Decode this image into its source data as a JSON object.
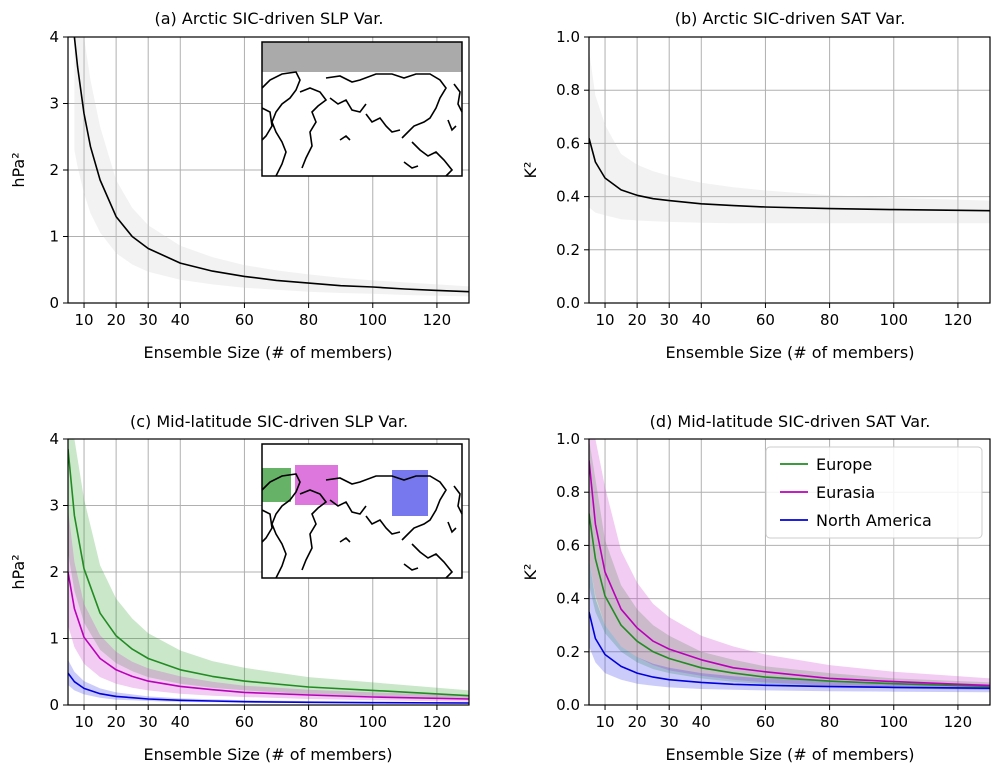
{
  "chart_data": [
    {
      "type": "line",
      "title": "(a) Arctic SIC-driven SLP Var.",
      "xlabel": "Ensemble Size (# of members)",
      "ylabel": "hPa²",
      "xlim": [
        5,
        130
      ],
      "ylim": [
        0,
        4
      ],
      "xticks": [
        10,
        20,
        30,
        40,
        60,
        80,
        100,
        120
      ],
      "yticks": [
        0,
        1,
        2,
        3,
        4
      ],
      "ytick_labels": [
        "0",
        "1",
        "2",
        "3",
        "4"
      ],
      "grid": true,
      "inset_map": {
        "regions": [
          {
            "name": "arctic",
            "color": "#999999"
          }
        ]
      },
      "series": [
        {
          "color": "#000000",
          "band_color": "#cccccc",
          "x": [
            7,
            8,
            10,
            12,
            15,
            20,
            25,
            30,
            40,
            50,
            60,
            70,
            80,
            90,
            100,
            110,
            120,
            130
          ],
          "y": [
            4.0,
            3.55,
            2.85,
            2.35,
            1.85,
            1.3,
            1.0,
            0.82,
            0.6,
            0.48,
            0.4,
            0.34,
            0.3,
            0.26,
            0.24,
            0.21,
            0.19,
            0.17
          ],
          "lower": [
            2.3,
            2.05,
            1.65,
            1.35,
            1.06,
            0.75,
            0.58,
            0.47,
            0.35,
            0.28,
            0.23,
            0.2,
            0.17,
            0.15,
            0.14,
            0.12,
            0.11,
            0.1
          ],
          "upper": [
            4.0,
            4.0,
            4.0,
            3.35,
            2.65,
            1.85,
            1.43,
            1.17,
            0.86,
            0.69,
            0.57,
            0.49,
            0.43,
            0.38,
            0.34,
            0.31,
            0.28,
            0.25
          ]
        }
      ]
    },
    {
      "type": "line",
      "title": "(b) Arctic SIC-driven SAT Var.",
      "xlabel": "Ensemble Size (# of members)",
      "ylabel": "K²",
      "xlim": [
        5,
        130
      ],
      "ylim": [
        0,
        1
      ],
      "xticks": [
        10,
        20,
        30,
        40,
        60,
        80,
        100,
        120
      ],
      "yticks": [
        0,
        0.2,
        0.4,
        0.6,
        0.8,
        1.0
      ],
      "ytick_labels": [
        "0.0",
        "0.2",
        "0.4",
        "0.6",
        "0.8",
        "1.0"
      ],
      "grid": true,
      "series": [
        {
          "color": "#000000",
          "band_color": "#cccccc",
          "x": [
            5,
            7,
            10,
            15,
            20,
            25,
            30,
            40,
            50,
            60,
            80,
            100,
            130
          ],
          "y": [
            0.62,
            0.53,
            0.47,
            0.425,
            0.405,
            0.392,
            0.385,
            0.373,
            0.366,
            0.361,
            0.355,
            0.351,
            0.347
          ],
          "lower": [
            0.36,
            0.34,
            0.33,
            0.315,
            0.31,
            0.307,
            0.305,
            0.302,
            0.3,
            0.3,
            0.3,
            0.3,
            0.3
          ],
          "upper": [
            0.95,
            0.78,
            0.67,
            0.56,
            0.52,
            0.495,
            0.478,
            0.452,
            0.435,
            0.423,
            0.405,
            0.395,
            0.385
          ]
        }
      ]
    },
    {
      "type": "line",
      "title": "(c) Mid-latitude SIC-driven SLP Var.",
      "xlabel": "Ensemble Size (# of members)",
      "ylabel": "hPa²",
      "xlim": [
        5,
        130
      ],
      "ylim": [
        0,
        4
      ],
      "xticks": [
        10,
        20,
        30,
        40,
        60,
        80,
        100,
        120
      ],
      "yticks": [
        0,
        1,
        2,
        3,
        4
      ],
      "ytick_labels": [
        "0",
        "1",
        "2",
        "3",
        "4"
      ],
      "grid": true,
      "inset_map": {
        "regions": [
          {
            "name": "europe",
            "color": "#2ca02c"
          },
          {
            "name": "eurasia",
            "color": "#cc33cc"
          },
          {
            "name": "north-america",
            "color": "#3333ee"
          }
        ]
      },
      "series": [
        {
          "color": "#228b22",
          "band_color": "#2ca02c",
          "x": [
            5,
            7,
            10,
            15,
            20,
            25,
            30,
            40,
            50,
            60,
            80,
            100,
            130
          ],
          "y": [
            3.85,
            2.85,
            2.05,
            1.38,
            1.04,
            0.84,
            0.7,
            0.53,
            0.43,
            0.36,
            0.27,
            0.22,
            0.14
          ],
          "lower": [
            2.3,
            1.72,
            1.24,
            0.83,
            0.63,
            0.51,
            0.42,
            0.32,
            0.26,
            0.22,
            0.16,
            0.13,
            0.08
          ],
          "upper": [
            4.0,
            4.0,
            3.1,
            2.1,
            1.6,
            1.3,
            1.08,
            0.82,
            0.66,
            0.56,
            0.42,
            0.34,
            0.22
          ]
        },
        {
          "color": "#bb00bb",
          "band_color": "#cc33cc",
          "x": [
            5,
            7,
            10,
            15,
            20,
            25,
            30,
            40,
            50,
            60,
            80,
            100,
            130
          ],
          "y": [
            2.0,
            1.45,
            1.02,
            0.7,
            0.53,
            0.43,
            0.36,
            0.28,
            0.23,
            0.19,
            0.15,
            0.12,
            0.09
          ],
          "lower": [
            1.2,
            0.87,
            0.62,
            0.42,
            0.32,
            0.26,
            0.22,
            0.17,
            0.14,
            0.12,
            0.09,
            0.07,
            0.05
          ],
          "upper": [
            2.95,
            2.15,
            1.52,
            1.05,
            0.8,
            0.65,
            0.55,
            0.43,
            0.35,
            0.29,
            0.23,
            0.19,
            0.14
          ]
        },
        {
          "color": "#0000dd",
          "band_color": "#3333ee",
          "x": [
            5,
            7,
            10,
            15,
            20,
            25,
            30,
            40,
            50,
            60,
            80,
            100,
            130
          ],
          "y": [
            0.48,
            0.35,
            0.25,
            0.17,
            0.13,
            0.11,
            0.09,
            0.07,
            0.06,
            0.05,
            0.04,
            0.035,
            0.03
          ],
          "lower": [
            0.3,
            0.22,
            0.16,
            0.11,
            0.08,
            0.07,
            0.06,
            0.045,
            0.04,
            0.035,
            0.028,
            0.024,
            0.02
          ],
          "upper": [
            0.68,
            0.5,
            0.36,
            0.25,
            0.19,
            0.16,
            0.13,
            0.1,
            0.085,
            0.072,
            0.058,
            0.05,
            0.042
          ]
        }
      ]
    },
    {
      "type": "line",
      "title": "(d) Mid-latitude SIC-driven SAT Var.",
      "xlabel": "Ensemble Size (# of members)",
      "ylabel": "K²",
      "xlim": [
        5,
        130
      ],
      "ylim": [
        0,
        1
      ],
      "xticks": [
        10,
        20,
        30,
        40,
        60,
        80,
        100,
        120
      ],
      "yticks": [
        0,
        0.2,
        0.4,
        0.6,
        0.8,
        1.0
      ],
      "ytick_labels": [
        "0.0",
        "0.2",
        "0.4",
        "0.6",
        "0.8",
        "1.0"
      ],
      "grid": true,
      "legend_position": "top-right",
      "series": [
        {
          "name": "Europe",
          "color": "#228b22",
          "band_color": "#2ca02c",
          "x": [
            5,
            7,
            10,
            15,
            20,
            25,
            30,
            40,
            50,
            60,
            80,
            100,
            130
          ],
          "y": [
            0.72,
            0.55,
            0.41,
            0.3,
            0.24,
            0.2,
            0.175,
            0.14,
            0.12,
            0.105,
            0.09,
            0.08,
            0.07
          ],
          "lower": [
            0.45,
            0.35,
            0.27,
            0.2,
            0.16,
            0.135,
            0.12,
            0.1,
            0.087,
            0.078,
            0.068,
            0.062,
            0.056
          ],
          "upper": [
            1.0,
            0.85,
            0.62,
            0.45,
            0.36,
            0.3,
            0.26,
            0.2,
            0.17,
            0.145,
            0.12,
            0.1,
            0.085
          ]
        },
        {
          "name": "Eurasia",
          "color": "#bb00bb",
          "band_color": "#cc33cc",
          "x": [
            5,
            7,
            10,
            15,
            20,
            25,
            30,
            40,
            50,
            60,
            80,
            100,
            130
          ],
          "y": [
            0.92,
            0.68,
            0.5,
            0.36,
            0.29,
            0.24,
            0.21,
            0.17,
            0.14,
            0.125,
            0.1,
            0.088,
            0.073
          ],
          "lower": [
            0.55,
            0.41,
            0.3,
            0.22,
            0.18,
            0.15,
            0.13,
            0.11,
            0.095,
            0.085,
            0.072,
            0.065,
            0.058
          ],
          "upper": [
            1.0,
            1.0,
            0.82,
            0.58,
            0.46,
            0.38,
            0.33,
            0.26,
            0.22,
            0.19,
            0.15,
            0.125,
            0.1
          ]
        },
        {
          "name": "North America",
          "color": "#0000dd",
          "band_color": "#3333ee",
          "x": [
            5,
            7,
            10,
            15,
            20,
            25,
            30,
            40,
            50,
            60,
            80,
            100,
            130
          ],
          "y": [
            0.35,
            0.25,
            0.19,
            0.145,
            0.12,
            0.105,
            0.095,
            0.085,
            0.078,
            0.074,
            0.069,
            0.066,
            0.063
          ],
          "lower": [
            0.22,
            0.16,
            0.12,
            0.095,
            0.08,
            0.072,
            0.066,
            0.06,
            0.057,
            0.055,
            0.052,
            0.05,
            0.048
          ],
          "upper": [
            0.55,
            0.4,
            0.3,
            0.22,
            0.18,
            0.155,
            0.14,
            0.12,
            0.108,
            0.1,
            0.09,
            0.085,
            0.078
          ]
        }
      ]
    }
  ]
}
